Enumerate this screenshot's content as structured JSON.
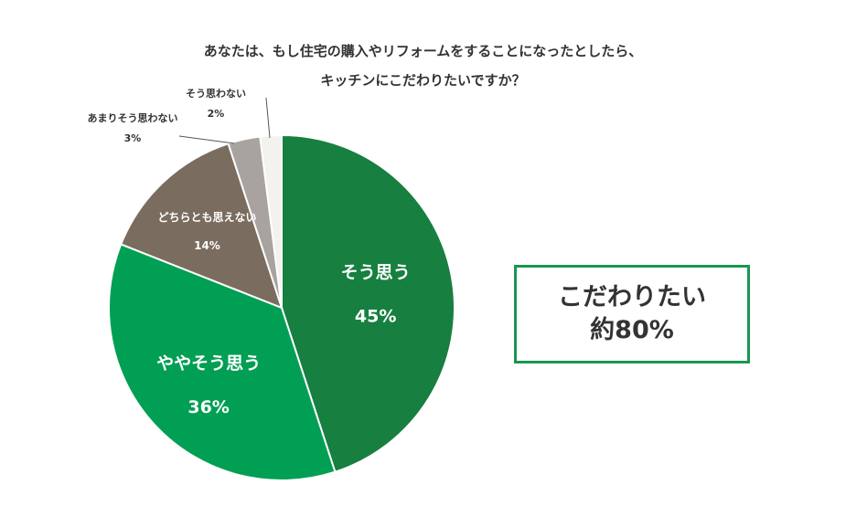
{
  "title_lines": [
    "あなたは、もし住宅の購入やリフォームをすることになったとしたら、",
    "キッチンにこだわりたいですか？"
  ],
  "callout": {
    "line1": "こだわりたい",
    "line2": "約80%"
  },
  "chart_data": {
    "type": "pie",
    "start": "12 o'clock, clockwise",
    "slices": [
      {
        "label": "そう思う",
        "value": 45,
        "value_label": "45%",
        "color": "#177f40",
        "text_color": "#ffffff",
        "callout_label": false
      },
      {
        "label": "ややそう思う",
        "value": 36,
        "value_label": "36%",
        "color": "#009f53",
        "text_color": "#ffffff",
        "callout_label": false
      },
      {
        "label": "どちらとも思えない",
        "value": 14,
        "value_label": "14%",
        "color": "#7a6c5f",
        "text_color": "#ffffff",
        "callout_label": false
      },
      {
        "label": "あまりそう思わない",
        "value": 3,
        "value_label": "3%",
        "color": "#a8a39f",
        "text_color": "#333333",
        "callout_label": true
      },
      {
        "label": "そう思わない",
        "value": 2,
        "value_label": "2%",
        "color": "#f3f2ee",
        "text_color": "#333333",
        "callout_label": true
      }
    ]
  }
}
